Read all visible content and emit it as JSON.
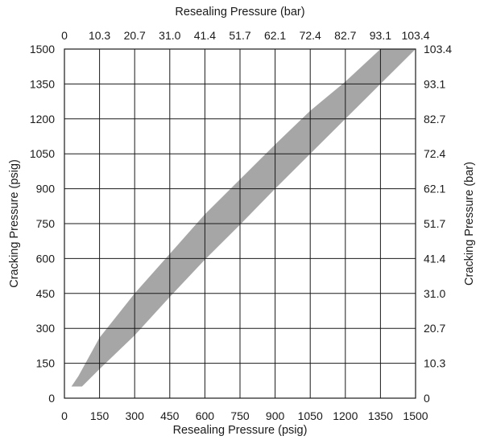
{
  "chart_data": {
    "type": "area",
    "title": "",
    "xlabel": "Resealing Pressure (psig)",
    "ylabel": "Cracking Pressure (psig)",
    "x2label": "Resealing Pressure (bar)",
    "y2label": "Cracking Pressure (bar)",
    "xlim": [
      0,
      1500
    ],
    "ylim": [
      0,
      1500
    ],
    "grid": true,
    "x_ticks": [
      "0",
      "150",
      "300",
      "450",
      "600",
      "750",
      "900",
      "1050",
      "1200",
      "1350",
      "1500"
    ],
    "y_ticks": [
      "0",
      "150",
      "300",
      "450",
      "600",
      "750",
      "900",
      "1050",
      "1200",
      "1350",
      "1500"
    ],
    "x2_ticks": [
      "0",
      "10.3",
      "20.7",
      "31.0",
      "41.4",
      "51.7",
      "62.1",
      "72.4",
      "82.7",
      "93.1",
      "103.4"
    ],
    "y2_ticks": [
      "0",
      "10.3",
      "20.7",
      "31.0",
      "41.4",
      "51.7",
      "62.1",
      "72.4",
      "82.7",
      "93.1",
      "103.4"
    ],
    "band_color": "#a6a6a6",
    "band": {
      "upper": [
        [
          30,
          50
        ],
        [
          60,
          95
        ],
        [
          150,
          260
        ],
        [
          300,
          450
        ],
        [
          450,
          620
        ],
        [
          600,
          790
        ],
        [
          750,
          940
        ],
        [
          900,
          1090
        ],
        [
          1050,
          1235
        ],
        [
          1200,
          1360
        ],
        [
          1350,
          1500
        ]
      ],
      "lower": [
        [
          1500,
          1500
        ],
        [
          1350,
          1350
        ],
        [
          1200,
          1200
        ],
        [
          1050,
          1050
        ],
        [
          900,
          900
        ],
        [
          750,
          745
        ],
        [
          600,
          595
        ],
        [
          450,
          435
        ],
        [
          300,
          270
        ],
        [
          150,
          125
        ],
        [
          75,
          50
        ],
        [
          30,
          50
        ]
      ]
    }
  }
}
